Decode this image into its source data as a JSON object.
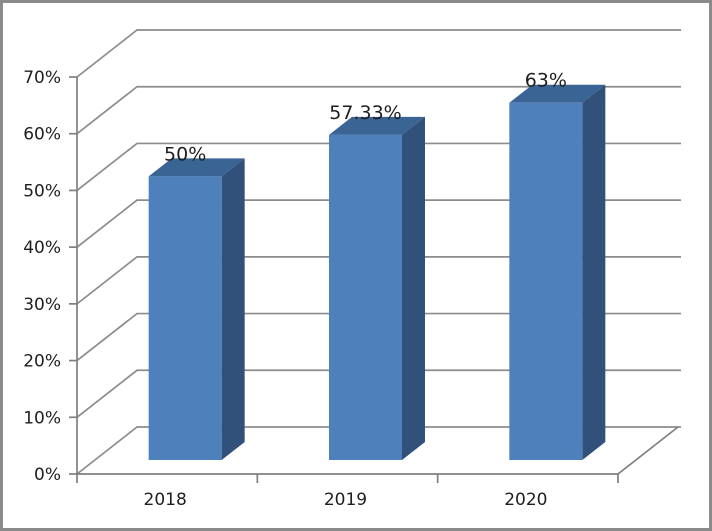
{
  "chart_data": {
    "type": "bar",
    "style": "3d-clustered-column",
    "title": "",
    "xlabel": "",
    "ylabel": "",
    "categories": [
      "2018",
      "2019",
      "2020"
    ],
    "series": [
      {
        "name": "",
        "values": [
          50,
          57.33,
          63
        ],
        "data_labels": [
          "50%",
          "57.33%",
          "63%"
        ]
      }
    ],
    "y_ticks": [
      "0%",
      "10%",
      "20%",
      "30%",
      "40%",
      "50%",
      "60%",
      "70%"
    ],
    "ylim": [
      0,
      70
    ],
    "unit": "%",
    "grid": true,
    "legend": "none",
    "colors": {
      "bar_front": "#4E80BC",
      "bar_top": "#3A6494",
      "bar_side": "#31507A",
      "gridline": "#8C8C8C",
      "axis": "#7F7F7F",
      "text": "#1F1F1F",
      "frame_border": "#8A8A8A",
      "background": "#FFFFFF"
    }
  }
}
